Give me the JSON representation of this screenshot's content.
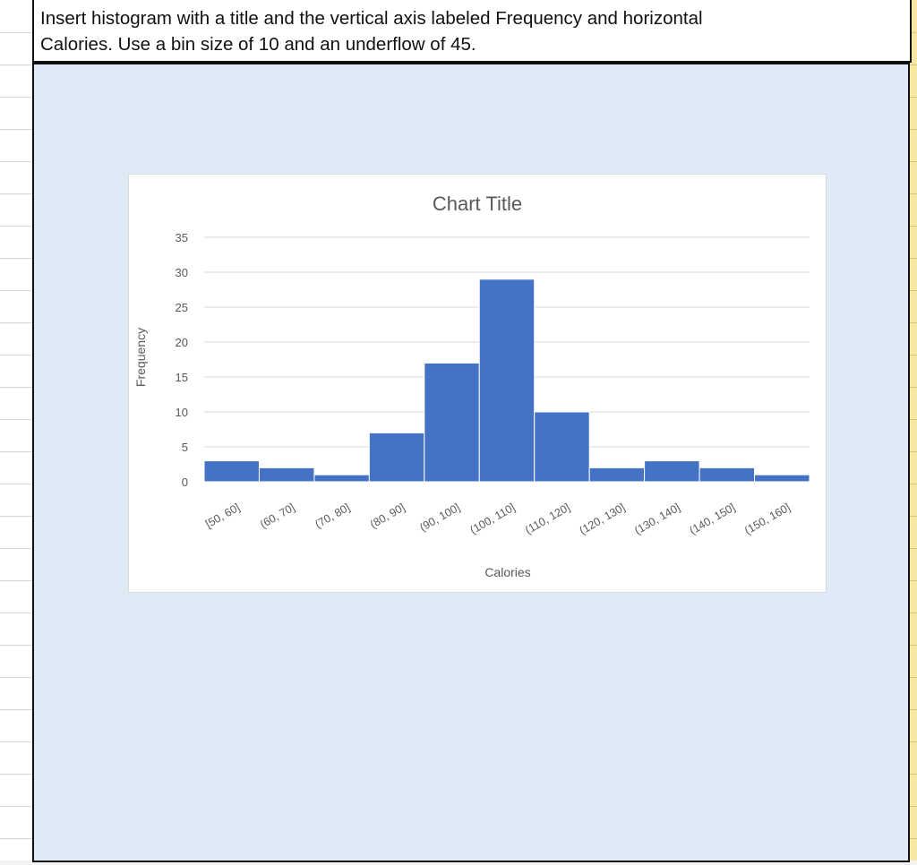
{
  "instruction": {
    "line1": "Insert histogram with a title and the vertical axis labeled Frequency and horizontal",
    "line2": "Calories.  Use a bin size of 10 and an underflow of 45."
  },
  "colors": {
    "bar": "#4472c4",
    "work_area": "#deeaf6",
    "gridline": "#d9d9d9"
  },
  "chart_data": {
    "type": "bar",
    "title": "Chart Title",
    "xlabel": "Calories",
    "ylabel": "Frequency",
    "ylim": [
      0,
      35
    ],
    "yticks": [
      0,
      5,
      10,
      15,
      20,
      25,
      30,
      35
    ],
    "grid": true,
    "categories": [
      "[50, 60]",
      "(60, 70]",
      "(70, 80]",
      "(80, 90]",
      "(90, 100]",
      "(100, 110]",
      "(110, 120]",
      "(120, 130]",
      "(130, 140]",
      "(140, 150]",
      "(150, 160]"
    ],
    "values": [
      3,
      2,
      1,
      7,
      17,
      29,
      10,
      2,
      3,
      2,
      1
    ]
  }
}
